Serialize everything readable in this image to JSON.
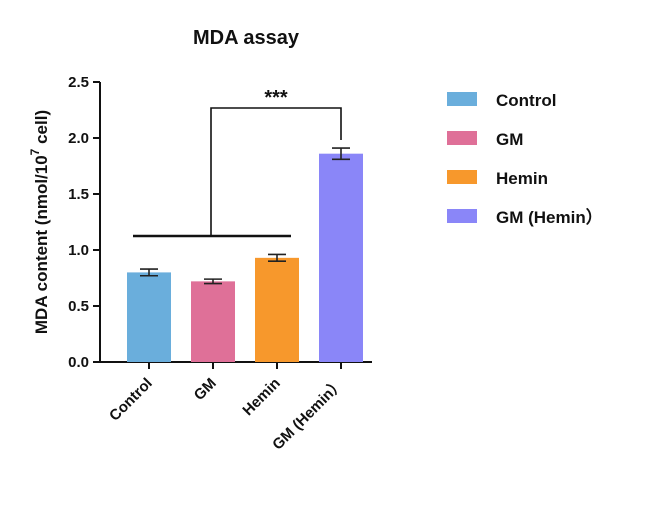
{
  "chart_data": {
    "type": "bar",
    "title": "MDA assay",
    "ylabel_main": "MDA content (nmol/10",
    "ylabel_sup": "7",
    "ylabel_tail": " cell)",
    "xlabel": "",
    "ylim": [
      0,
      2.5
    ],
    "yticks": [
      "0.0",
      "0.5",
      "1.0",
      "1.5",
      "2.0",
      "2.5"
    ],
    "ytick_values": [
      0,
      0.5,
      1.0,
      1.5,
      2.0,
      2.5
    ],
    "categories": [
      "Control",
      "GM",
      "Hemin",
      "GM (Hemin）"
    ],
    "values": [
      0.8,
      0.72,
      0.93,
      1.86
    ],
    "errors": [
      0.03,
      0.02,
      0.03,
      0.05
    ],
    "colors": [
      "#6aaedc",
      "#df7098",
      "#f7982c",
      "#8a86f8"
    ],
    "significance": {
      "label": "***",
      "from_index": 3,
      "to_group": [
        0,
        2
      ]
    },
    "legend": {
      "position": "right",
      "entries": [
        "Control",
        "GM",
        "Hemin",
        "GM (Hemin）"
      ]
    },
    "grid": false
  }
}
